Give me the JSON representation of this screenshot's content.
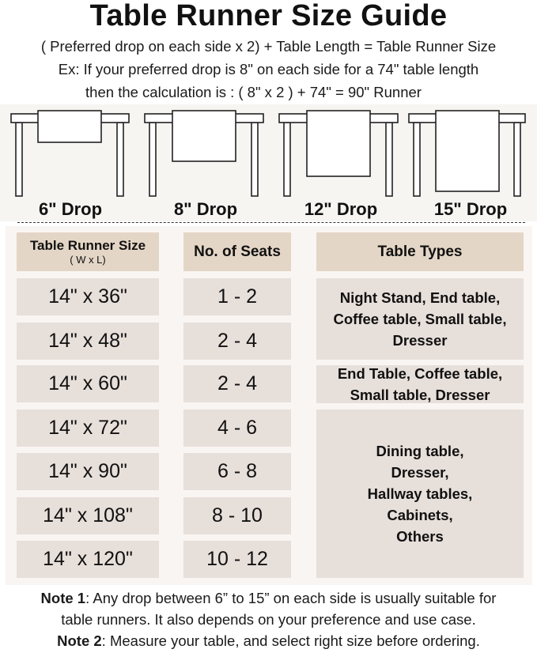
{
  "title": "Table Runner Size Guide",
  "formula": "( Preferred drop on each side x 2) + Table Length = Table Runner Size",
  "example_line1": "Ex: If your preferred drop is 8\" on each side for a 74\" table length",
  "example_line2": "then the calculation is : ( 8\" x 2 ) + 74\" = 90\" Runner",
  "drops": [
    {
      "label": "6\" Drop",
      "inches": 6
    },
    {
      "label": "8\" Drop",
      "inches": 8
    },
    {
      "label": "12\" Drop",
      "inches": 12
    },
    {
      "label": "15\" Drop",
      "inches": 15
    }
  ],
  "table": {
    "headers": {
      "size": "Table Runner Size",
      "size_sub": "( W x L)",
      "seats": "No. of Seats",
      "types": "Table Types"
    },
    "rows": [
      {
        "size": "14\" x 36\"",
        "seats": "1 - 2"
      },
      {
        "size": "14\" x 48\"",
        "seats": "2 - 4"
      },
      {
        "size": "14\" x 60\"",
        "seats": "2 - 4"
      },
      {
        "size": "14\" x 72\"",
        "seats": "4 - 6"
      },
      {
        "size": "14\" x 90\"",
        "seats": "6 - 8"
      },
      {
        "size": "14\" x 108\"",
        "seats": "8 - 10"
      },
      {
        "size": "14\" x 120\"",
        "seats": "10 - 12"
      }
    ],
    "types": [
      "Night Stand, End table, Coffee table, Small table, Dresser",
      "End Table, Coffee table, Small table, Dresser",
      "Dining table, Dresser, Hallway tables, Cabinets, Others"
    ]
  },
  "notes": [
    {
      "label": "Note 1",
      "text": ": Any drop between 6” to 15” on each side is usually suitable for",
      "text2": "table runners. It also depends on your preference and use case."
    },
    {
      "label": "Note 2",
      "text": ": Measure your table, and select right size before ordering."
    }
  ],
  "colors": {
    "header_box": "#e4d6c6",
    "row_box": "#e7dfda",
    "panel": "#f9f5f2"
  }
}
